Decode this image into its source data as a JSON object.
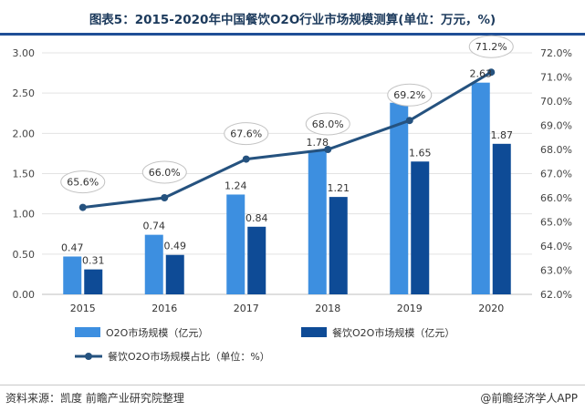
{
  "header": {
    "title": "图表5：2015-2020年中国餐饮O2O行业市场规模测算(单位：万元，%)"
  },
  "footer": {
    "source": "资料来源：凯度 前瞻产业研究院整理",
    "brand": "@前瞻经济学人APP"
  },
  "colors": {
    "bar_primary": "#3d8fe0",
    "bar_secondary": "#0e4b96",
    "line": "#25527f",
    "title": "#1c3a5c",
    "accent_rule": "#1f4e96"
  },
  "chart_data": {
    "type": "bar",
    "categories": [
      "2015",
      "2016",
      "2017",
      "2018",
      "2019",
      "2020"
    ],
    "series": [
      {
        "name": "O2O市场规模（亿元）",
        "type": "bar",
        "axis": "left",
        "values": [
          0.47,
          0.74,
          1.24,
          1.78,
          2.38,
          2.63
        ]
      },
      {
        "name": "餐饮O2O市场规模（亿元）",
        "type": "bar",
        "axis": "left",
        "values": [
          0.31,
          0.49,
          0.84,
          1.21,
          1.65,
          1.87
        ]
      },
      {
        "name": "餐饮O2O市场规模占比（单位：%）",
        "type": "line",
        "axis": "right",
        "values": [
          65.6,
          66.0,
          67.6,
          68.0,
          69.2,
          71.2
        ]
      }
    ],
    "y_left": {
      "ylim": [
        0,
        3
      ],
      "ticks": [
        "0.00",
        "0.50",
        "1.00",
        "1.50",
        "2.00",
        "2.50",
        "3.00"
      ]
    },
    "y_right": {
      "ylim": [
        62,
        72
      ],
      "ticks": [
        "62.0%",
        "63.0%",
        "64.0%",
        "65.0%",
        "66.0%",
        "67.0%",
        "68.0%",
        "69.0%",
        "70.0%",
        "71.0%",
        "72.0%"
      ]
    },
    "line_labels": [
      "65.6%",
      "66.0%",
      "67.6%",
      "68.0%",
      "69.2%",
      "71.2%"
    ],
    "grid": true,
    "legend_position": "bottom"
  }
}
